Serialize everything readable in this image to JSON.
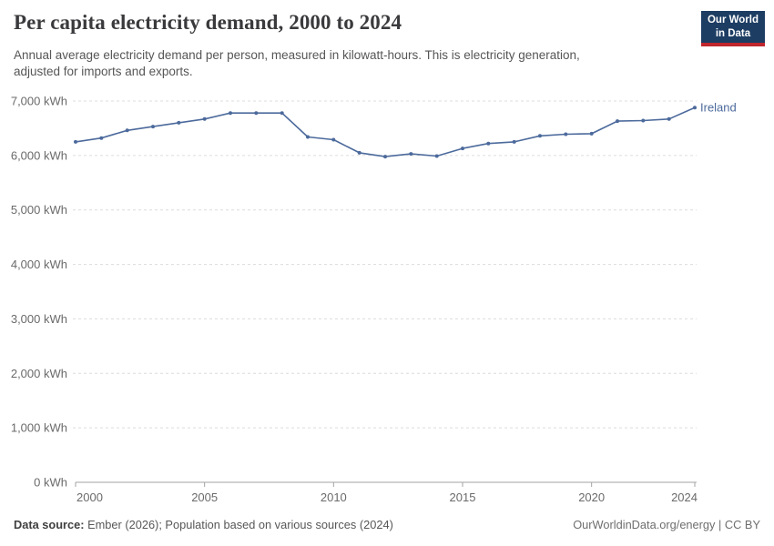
{
  "header": {
    "title": "Per capita electricity demand, 2000 to 2024",
    "subtitle_line1": "Annual average electricity demand per person, measured in kilowatt-hours. This is electricity generation,",
    "subtitle_line2": "adjusted for imports and exports.",
    "logo": {
      "line1": "Our World",
      "line2": "in Data"
    }
  },
  "footer": {
    "source_label": "Data source:",
    "source_text": " Ember (2026); Population based on various sources (2024)",
    "credit": "OurWorldinData.org/energy | CC BY"
  },
  "colors": {
    "series_blue": "#4c6a9c",
    "gridline": "#dcdcdc",
    "axis": "#a3a3a3",
    "tick_label": "#6a6a6a",
    "logo_navy": "#1d3d63",
    "logo_red": "#c0262d"
  },
  "chart_data": {
    "type": "line",
    "title": "Per capita electricity demand, 2000 to 2024",
    "subtitle": "Annual average electricity demand per person, measured in kilowatt-hours. This is electricity generation, adjusted for imports and exports.",
    "x": [
      2000,
      2001,
      2002,
      2003,
      2004,
      2005,
      2006,
      2007,
      2008,
      2009,
      2010,
      2011,
      2012,
      2013,
      2014,
      2015,
      2016,
      2017,
      2018,
      2019,
      2020,
      2021,
      2022,
      2023,
      2024
    ],
    "series": [
      {
        "name": "Ireland",
        "color": "#4c6a9c",
        "values": [
          6250,
          6320,
          6460,
          6530,
          6600,
          6670,
          6780,
          6780,
          6780,
          6340,
          6290,
          6050,
          5980,
          6030,
          5990,
          6130,
          6220,
          6250,
          6360,
          6390,
          6400,
          6630,
          6640,
          6670,
          6880
        ]
      }
    ],
    "unit": "kWh",
    "ytick_suffix": " kWh",
    "xticks": [
      2000,
      2005,
      2010,
      2015,
      2020,
      2024
    ],
    "yticks": [
      0,
      1000,
      2000,
      3000,
      4000,
      5000,
      6000,
      7000
    ],
    "xlim": [
      2000,
      2024
    ],
    "ylim": [
      0,
      7000
    ],
    "grid": "horizontal-dashed",
    "legend_position": "end-of-line-label"
  }
}
